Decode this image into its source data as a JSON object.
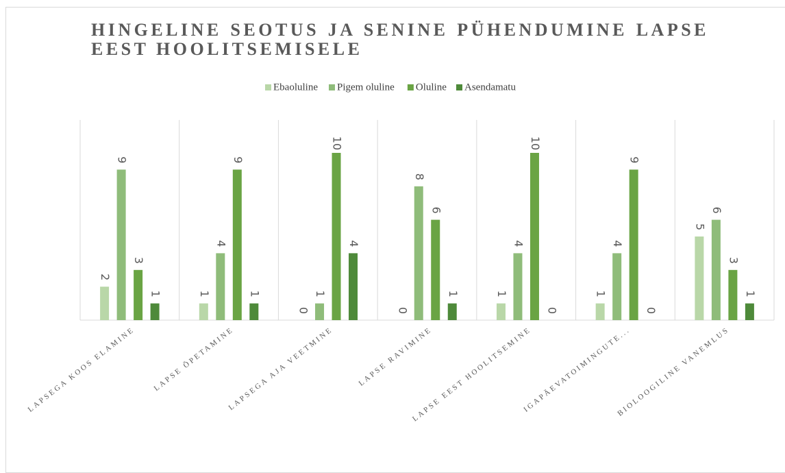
{
  "chart_data": {
    "type": "bar",
    "title": "HINGELINE SEOTUS JA SENINE PÜHENDUMINE LAPSE EEST HOOLITSEMISELE",
    "categories": [
      "LAPSEGA KOOS ELAMINE",
      "LAPSE ÕPETAMINE",
      "LAPSEGA AJA VEETMINE",
      "LAPSE RAVIMINE",
      "LAPSE EEST HOOLITSEMINE",
      "IGAPÄEVATOIMINGUTE...",
      "BIOLOOGILINE VANEMLUS"
    ],
    "series": [
      {
        "name": "Ebaoluline",
        "color": "#b9d7a8",
        "values": [
          2,
          1,
          0,
          0,
          1,
          1,
          5
        ]
      },
      {
        "name": "Pigem oluline",
        "color": "#8fbc7a",
        "values": [
          9,
          4,
          1,
          8,
          4,
          4,
          6
        ]
      },
      {
        "name": "Oluline",
        "color": "#6aa444",
        "values": [
          3,
          9,
          10,
          6,
          10,
          9,
          3
        ]
      },
      {
        "name": "Asendamatu",
        "color": "#4e8a3a",
        "values": [
          1,
          1,
          4,
          1,
          0,
          0,
          1
        ]
      }
    ],
    "legend": "top"
  }
}
